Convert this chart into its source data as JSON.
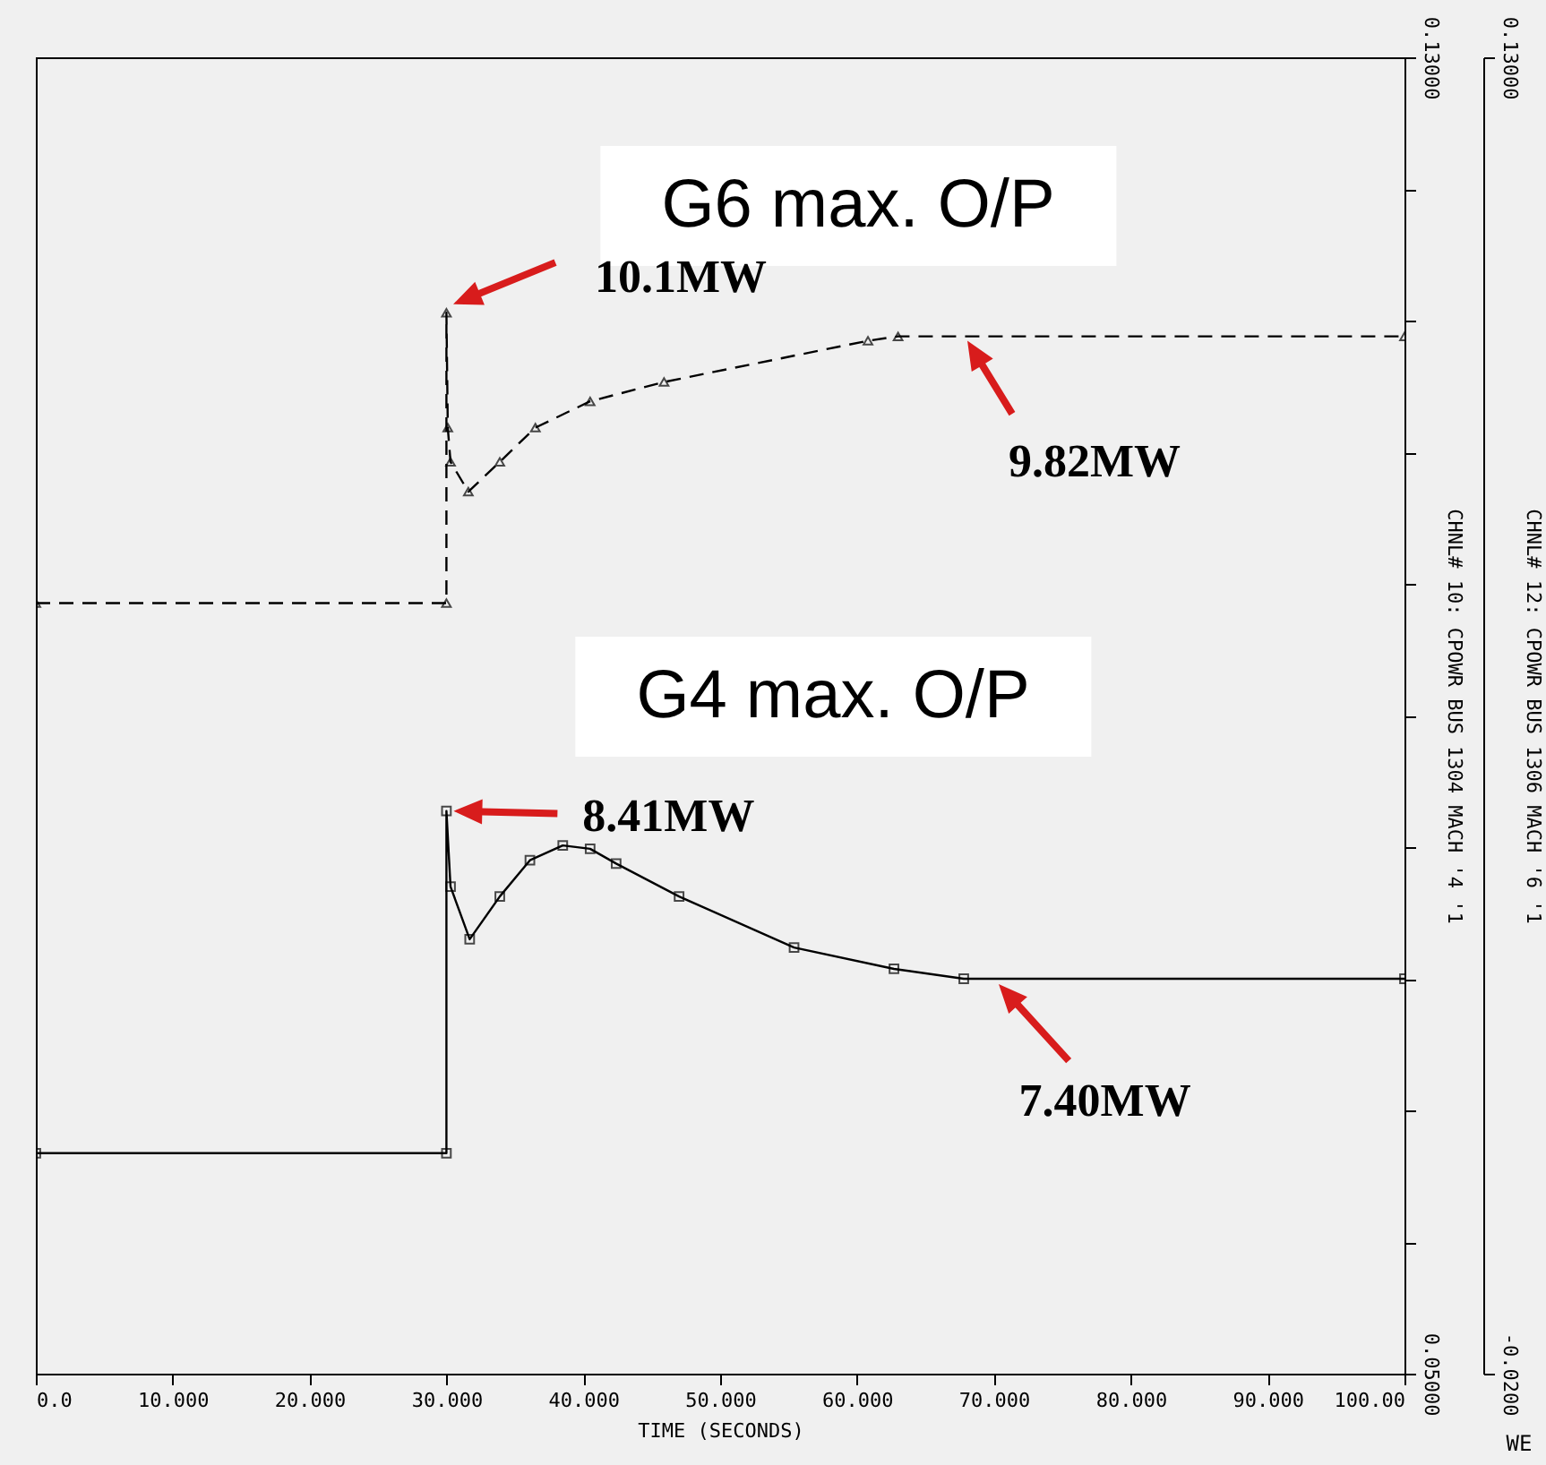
{
  "chart_data": {
    "type": "line",
    "xlabel": "TIME  (SECONDS)",
    "ylabel": "CHNL# 10: CPOWR BUS 1304 MACH '4 '1",
    "y2label": "CHNL# 12: CPOWR BUS 1306 MACH '6 '1",
    "xlim": [
      0,
      100
    ],
    "xticks": [
      {
        "value": 0,
        "label": "0.0"
      },
      {
        "value": 10,
        "label": "10.000"
      },
      {
        "value": 20,
        "label": "20.000"
      },
      {
        "value": 30,
        "label": "30.000"
      },
      {
        "value": 40,
        "label": "40.000"
      },
      {
        "value": 50,
        "label": "50.000"
      },
      {
        "value": 60,
        "label": "60.000"
      },
      {
        "value": 70,
        "label": "70.000"
      },
      {
        "value": 80,
        "label": "80.000"
      },
      {
        "value": 90,
        "label": "90.000"
      },
      {
        "value": 100,
        "label": "100.00"
      }
    ],
    "ylim": [
      0.05,
      0.13
    ],
    "yticks": [
      {
        "value": 0.05,
        "label": "0.05000"
      },
      {
        "value": 0.058,
        "label": null
      },
      {
        "value": 0.066,
        "label": null
      },
      {
        "value": 0.074,
        "label": null
      },
      {
        "value": 0.082,
        "label": null
      },
      {
        "value": 0.09,
        "label": null
      },
      {
        "value": 0.098,
        "label": null
      },
      {
        "value": 0.106,
        "label": null
      },
      {
        "value": 0.114,
        "label": null
      },
      {
        "value": 0.122,
        "label": null
      },
      {
        "value": 0.13,
        "label": "0.13000"
      }
    ],
    "y2lim": [
      -0.02,
      0.13
    ],
    "y2ticks": [
      {
        "value": -0.02,
        "label": "-0.0200"
      },
      {
        "value": 0.13,
        "label": "0.13000"
      }
    ],
    "series": [
      {
        "color": "#000000",
        "line_style": "solid",
        "marker": "square",
        "x": [
          0,
          30,
          30,
          30.3,
          31.7,
          33.9,
          36.1,
          38.5,
          40.5,
          42.4,
          47,
          55.4,
          62.7,
          67.8,
          100
        ],
        "values": [
          0.0634,
          0.0634,
          0.0842,
          0.0796,
          0.0764,
          0.079,
          0.0812,
          0.0821,
          0.0819,
          0.081,
          0.079,
          0.0759,
          0.0746,
          0.074,
          0.074
        ]
      },
      {
        "color": "#000000",
        "axis": "y2",
        "line_style": "dashed",
        "marker": "triangle",
        "x": [
          0,
          30,
          30,
          30.1,
          30.3,
          31.6,
          33.9,
          36.5,
          40.5,
          45.9,
          60.8,
          63,
          100
        ],
        "values": [
          0.0678,
          0.0678,
          0.1009,
          0.0878,
          0.0839,
          0.0805,
          0.0839,
          0.0878,
          0.0908,
          0.093,
          0.0977,
          0.0982,
          0.0982
        ]
      }
    ],
    "annotations": [
      "G6 max. O/P",
      "10.1MW",
      "9.82MW",
      "G4 max. O/P",
      {
        "text": "8.41MW",
        "x": 30,
        "y": 0.0842
      },
      {
        "text": "7.40MW",
        "x": 70,
        "y": 0.074
      },
      "WE"
    ]
  }
}
